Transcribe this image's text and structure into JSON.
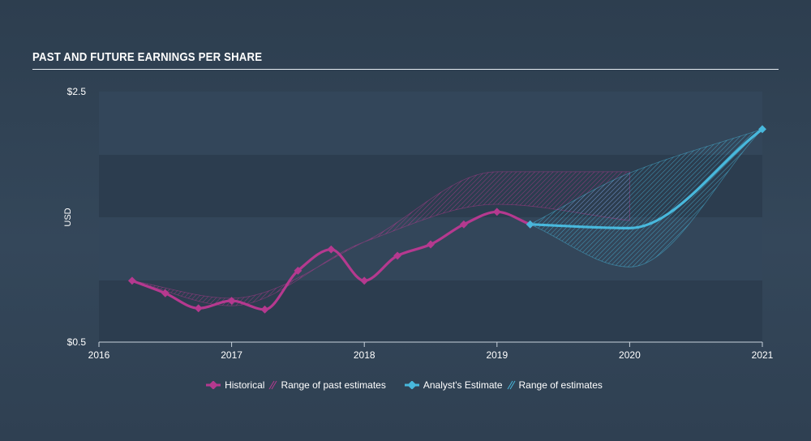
{
  "title": "PAST AND FUTURE EARNINGS PER SHARE",
  "colors": {
    "historical": "#b5398f",
    "estimate": "#48b8dc",
    "text": "#ffffff",
    "axis": "#c8d2dc"
  },
  "legend": {
    "historical": "Historical",
    "past_range": "Range of past estimates",
    "estimate": "Analyst's Estimate",
    "estimate_range": "Range of estimates"
  },
  "chart_data": {
    "type": "line",
    "ylabel": "USD",
    "ylim": [
      0.5,
      2.5
    ],
    "xlim": [
      2016,
      2021
    ],
    "y_tick_labels": [
      "$0.5",
      "$2.5"
    ],
    "x_tick_labels": [
      "2016",
      "2017",
      "2018",
      "2019",
      "2020",
      "2021"
    ],
    "series": [
      {
        "name": "Historical",
        "x": [
          2016.25,
          2016.5,
          2016.75,
          2017.0,
          2017.25,
          2017.5,
          2017.75,
          2018.0,
          2018.25,
          2018.5,
          2018.75,
          2019.0,
          2019.25
        ],
        "values": [
          0.99,
          0.89,
          0.77,
          0.83,
          0.76,
          1.07,
          1.24,
          0.99,
          1.19,
          1.28,
          1.44,
          1.54,
          1.44
        ]
      },
      {
        "name": "Analyst's Estimate",
        "x": [
          2019.25,
          2020.0,
          2021.0
        ],
        "values": [
          1.44,
          1.41,
          2.2
        ]
      }
    ],
    "ranges": [
      {
        "name": "Range of past estimates",
        "x": [
          2016.25,
          2017.0,
          2018.0,
          2019.0,
          2020.0
        ],
        "high": [
          0.99,
          0.85,
          1.3,
          1.86,
          1.86
        ],
        "low": [
          0.99,
          0.79,
          1.3,
          1.6,
          1.47
        ]
      },
      {
        "name": "Range of estimates",
        "x": [
          2019.25,
          2020.0,
          2021.0
        ],
        "high": [
          1.44,
          1.85,
          2.2
        ],
        "low": [
          1.44,
          1.1,
          2.2
        ]
      }
    ]
  }
}
